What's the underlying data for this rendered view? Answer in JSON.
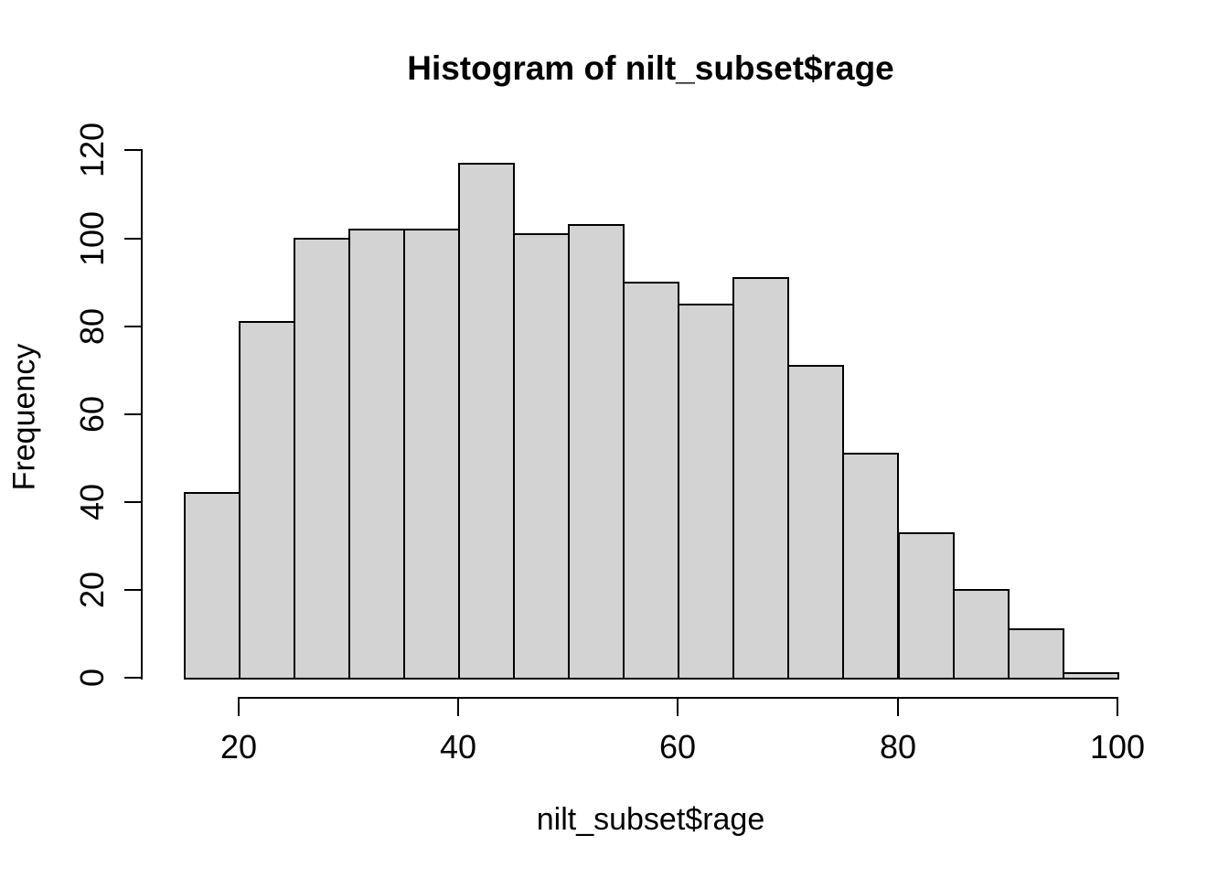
{
  "chart_data": {
    "type": "bar",
    "subtype": "histogram",
    "title": "Histogram of nilt_subset$rage",
    "xlabel": "nilt_subset$rage",
    "ylabel": "Frequency",
    "bin_edges": [
      15,
      20,
      25,
      30,
      35,
      40,
      45,
      50,
      55,
      60,
      65,
      70,
      75,
      80,
      85,
      90,
      95,
      100
    ],
    "categories": [
      "15-20",
      "20-25",
      "25-30",
      "30-35",
      "35-40",
      "40-45",
      "45-50",
      "50-55",
      "55-60",
      "60-65",
      "65-70",
      "70-75",
      "75-80",
      "80-85",
      "85-90",
      "90-95",
      "95-100"
    ],
    "values": [
      42,
      81,
      100,
      102,
      102,
      117,
      101,
      103,
      90,
      85,
      91,
      71,
      51,
      33,
      20,
      11,
      1
    ],
    "x_ticks": [
      20,
      40,
      60,
      80,
      100
    ],
    "y_ticks": [
      0,
      20,
      40,
      60,
      80,
      100,
      120
    ],
    "xlim": [
      15,
      100
    ],
    "ylim": [
      0,
      120
    ],
    "grid": false,
    "legend": false,
    "bar_fill_color": "#d3d3d3",
    "bar_border_color": "#000000",
    "text_color": "#000000",
    "background_color": "#ffffff"
  }
}
